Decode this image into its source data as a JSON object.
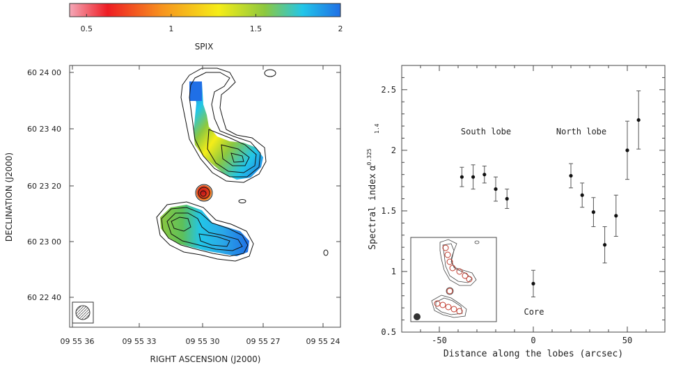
{
  "colorbar": {
    "label": "SPIX",
    "ticks": [
      "0.5",
      "1",
      "1.5",
      "2"
    ],
    "tick_values": [
      0.5,
      1,
      1.5,
      2
    ],
    "range": [
      0.4,
      2.0
    ],
    "colors": [
      "#f4a8b8",
      "#ee1c23",
      "#f7931e",
      "#f5ed18",
      "#8dc83f",
      "#22c6e8",
      "#1f6fe6"
    ]
  },
  "left_map": {
    "xlabel": "RIGHT ASCENSION  (J2000)",
    "ylabel": "DECLINATION  (J2000)",
    "xticks": [
      "09 55 36",
      "09 55 33",
      "09 55 30",
      "09 55 27",
      "09 55 24"
    ],
    "yticks": [
      "60 24 00",
      "60 23 40",
      "60 23 20",
      "60 23 00",
      "60 22 40"
    ]
  },
  "chart_data": {
    "type": "scatter",
    "xlabel": "Distance along the lobes (arcsec)",
    "ylabel": "Spectral index",
    "ylabel_sym": "α",
    "ylabel_sup": "0.325",
    "ylabel_sub": "1.4",
    "xlim": [
      -70,
      70
    ],
    "ylim": [
      0.5,
      2.7
    ],
    "xticks": [
      -50,
      0,
      50
    ],
    "yticks": [
      0.5,
      1,
      1.5,
      2,
      2.5
    ],
    "ytick_labels": [
      "0.5",
      "1",
      "1.5",
      "2",
      "2.5"
    ],
    "annotations": [
      "South lobe",
      "North lobe",
      "Core"
    ],
    "points": [
      {
        "x": -38,
        "y": 1.78,
        "err": 0.08
      },
      {
        "x": -32,
        "y": 1.78,
        "err": 0.1
      },
      {
        "x": -26,
        "y": 1.8,
        "err": 0.07
      },
      {
        "x": -20,
        "y": 1.68,
        "err": 0.1
      },
      {
        "x": -14,
        "y": 1.6,
        "err": 0.08
      },
      {
        "x": 0,
        "y": 0.9,
        "err": 0.11
      },
      {
        "x": 20,
        "y": 1.79,
        "err": 0.1
      },
      {
        "x": 26,
        "y": 1.63,
        "err": 0.1
      },
      {
        "x": 32,
        "y": 1.49,
        "err": 0.12
      },
      {
        "x": 38,
        "y": 1.22,
        "err": 0.15
      },
      {
        "x": 44,
        "y": 1.46,
        "err": 0.17
      },
      {
        "x": 50,
        "y": 2.0,
        "err": 0.24
      },
      {
        "x": 56,
        "y": 2.25,
        "err": 0.24
      }
    ]
  }
}
